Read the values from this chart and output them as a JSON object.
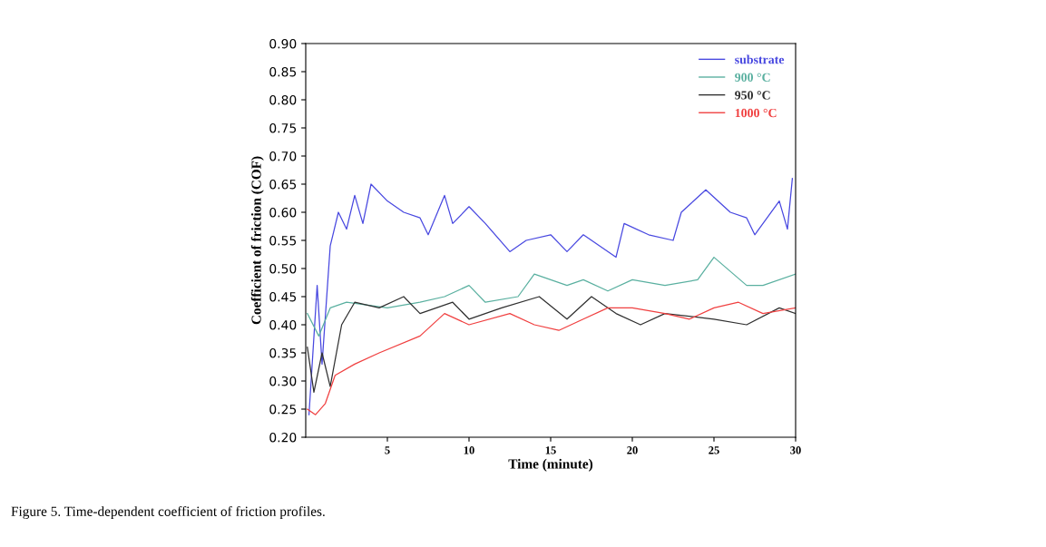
{
  "chart_data": {
    "type": "line",
    "xlabel": "Time (minute)",
    "ylabel": "Coefficient of friction (COF)",
    "xlim": [
      0,
      30
    ],
    "xticks": [
      5,
      10,
      15,
      20,
      25,
      30
    ],
    "ylim": [
      0.2,
      0.9
    ],
    "yticks": [
      {
        "value": 0.2,
        "label": "0.20"
      },
      {
        "value": 0.25,
        "label": "0.25"
      },
      {
        "value": 0.3,
        "label": "0.30"
      },
      {
        "value": 0.35,
        "label": "0.35"
      },
      {
        "value": 0.4,
        "label": "0.40"
      },
      {
        "value": 0.45,
        "label": "0.45"
      },
      {
        "value": 0.5,
        "label": "0.50"
      },
      {
        "value": 0.55,
        "label": "0.55"
      },
      {
        "value": 0.6,
        "label": "0.60"
      },
      {
        "value": 0.65,
        "label": "0.65"
      },
      {
        "value": 0.7,
        "label": "0.70"
      },
      {
        "value": 0.75,
        "label": "0.75"
      },
      {
        "value": 0.8,
        "label": "0.80"
      },
      {
        "value": 0.85,
        "label": "0.85"
      },
      {
        "value": 0.9,
        "label": "0.90"
      }
    ],
    "grid": false,
    "legend": "top right",
    "line_style": "solid",
    "annotations": [
      "Figure 5. Time-dependent coefficient of friction profiles."
    ],
    "series": [
      {
        "name": "substrate",
        "color": "#4848e0",
        "x": [
          0.2,
          0.7,
          1.0,
          1.5,
          2.0,
          2.5,
          3.0,
          3.5,
          4.0,
          5.0,
          6.0,
          7.0,
          7.5,
          8.5,
          9.0,
          10.0,
          11.0,
          12.5,
          13.5,
          15.0,
          16.0,
          17.0,
          19.0,
          19.5,
          21.0,
          22.5,
          23.0,
          24.5,
          26.0,
          27.0,
          27.5,
          29.0,
          29.5,
          29.8
        ],
        "values": [
          0.24,
          0.47,
          0.33,
          0.54,
          0.6,
          0.57,
          0.63,
          0.58,
          0.65,
          0.62,
          0.6,
          0.59,
          0.56,
          0.63,
          0.58,
          0.61,
          0.58,
          0.53,
          0.55,
          0.56,
          0.53,
          0.56,
          0.52,
          0.58,
          0.56,
          0.55,
          0.6,
          0.64,
          0.6,
          0.59,
          0.56,
          0.62,
          0.57,
          0.66
        ]
      },
      {
        "name": "900 °C",
        "color": "#5ab0a0",
        "x": [
          0.1,
          0.8,
          1.5,
          2.5,
          5.0,
          7.0,
          8.5,
          10.0,
          11.0,
          13.0,
          14.0,
          16.0,
          17.0,
          18.5,
          20.0,
          22.0,
          24.0,
          25.0,
          27.0,
          28.0,
          30.0
        ],
        "values": [
          0.42,
          0.38,
          0.43,
          0.44,
          0.43,
          0.44,
          0.45,
          0.47,
          0.44,
          0.45,
          0.49,
          0.47,
          0.48,
          0.46,
          0.48,
          0.47,
          0.48,
          0.52,
          0.47,
          0.47,
          0.49
        ]
      },
      {
        "name": "950 °C",
        "color": "#303030",
        "x": [
          0.1,
          0.5,
          1.0,
          1.5,
          2.2,
          3.0,
          4.5,
          6.0,
          7.0,
          9.0,
          10.0,
          12.0,
          14.3,
          16.0,
          17.5,
          19.0,
          20.5,
          22.0,
          25.0,
          27.0,
          29.0,
          30.0
        ],
        "values": [
          0.36,
          0.28,
          0.35,
          0.29,
          0.4,
          0.44,
          0.43,
          0.45,
          0.42,
          0.44,
          0.41,
          0.43,
          0.45,
          0.41,
          0.45,
          0.42,
          0.4,
          0.42,
          0.41,
          0.4,
          0.43,
          0.42
        ]
      },
      {
        "name": "1000 °C",
        "color": "#f04040",
        "x": [
          0.1,
          0.6,
          1.2,
          1.8,
          3.0,
          4.5,
          7.0,
          8.5,
          10.0,
          12.5,
          14.0,
          15.5,
          17.0,
          18.5,
          20.0,
          22.0,
          23.5,
          25.0,
          26.5,
          28.0,
          30.0
        ],
        "values": [
          0.25,
          0.24,
          0.26,
          0.31,
          0.33,
          0.35,
          0.38,
          0.42,
          0.4,
          0.42,
          0.4,
          0.39,
          0.41,
          0.43,
          0.43,
          0.42,
          0.41,
          0.43,
          0.44,
          0.42,
          0.43
        ]
      }
    ]
  }
}
